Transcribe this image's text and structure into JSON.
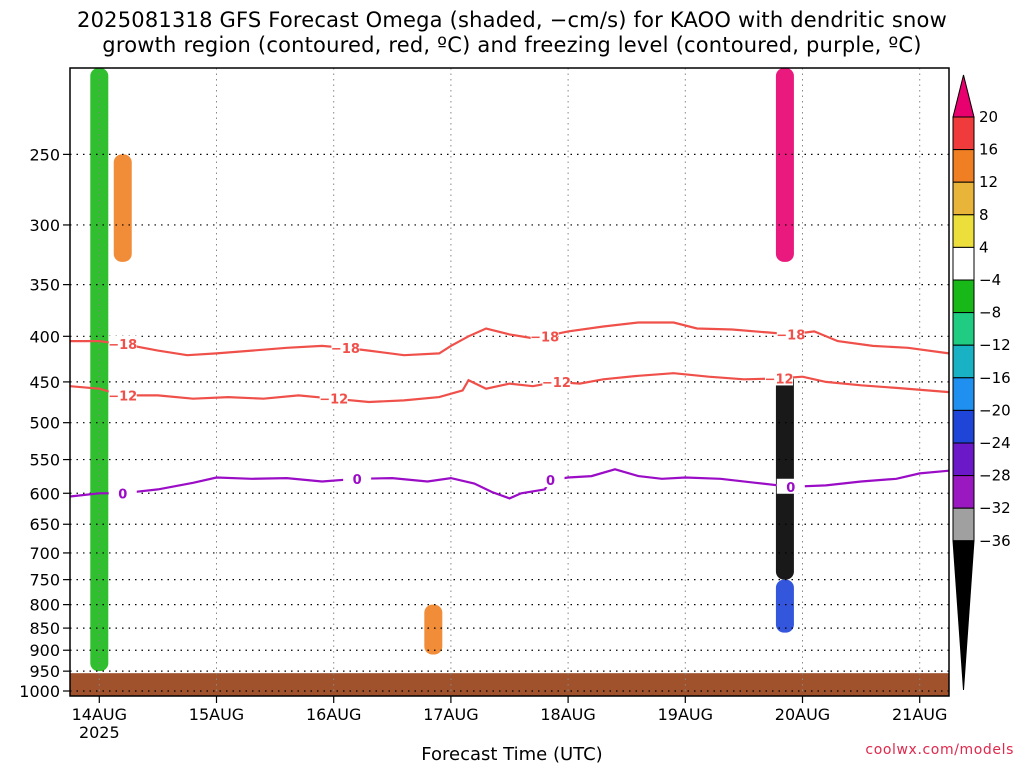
{
  "title_line1": "2025081318 GFS Forecast Omega (shaded, −cm/s) for KAOO with dendritic snow",
  "title_line2": "growth region (contoured, red, ºC) and freezing level (contoured, purple, ºC)",
  "watermark": "coolwx.com/models",
  "chart_data": {
    "type": "heatmap",
    "title": "2025081318 GFS Forecast Omega (shaded, −cm/s) for KAOO with dendritic snow growth region (contoured, red, ºC) and freezing level (contoured, purple, ºC)",
    "xlabel": "Forecast Time (UTC)",
    "ylabel": "",
    "y_scale": "log-pressure (hPa), inverted",
    "ylim": [
      1000,
      200
    ],
    "y_ticks": [
      250,
      300,
      350,
      400,
      450,
      500,
      550,
      600,
      650,
      700,
      750,
      800,
      850,
      900,
      950,
      1000
    ],
    "x_ticks": [
      "14AUG",
      "15AUG",
      "16AUG",
      "17AUG",
      "18AUG",
      "19AUG",
      "20AUG",
      "21AUG"
    ],
    "x_tick_year": "2025",
    "x_range_days": [
      13.75,
      21.25
    ],
    "grid": true,
    "colorbar": {
      "labels": [
        "20",
        "16",
        "12",
        "8",
        "4",
        "−4",
        "−8",
        "−12",
        "−16",
        "−20",
        "−24",
        "−28",
        "−32",
        "−36"
      ],
      "colors": [
        "#e8006f",
        "#ef3b3b",
        "#ef7f22",
        "#e8b43a",
        "#ecdf3c",
        "#ffffff",
        "#18b818",
        "#20cc82",
        "#18b2c4",
        "#1f8ff0",
        "#1e44d8",
        "#6a18c8",
        "#9a18c0",
        "#a0a0a0",
        "#000000"
      ]
    },
    "contours": [
      {
        "label": "-18",
        "color": "#f0504a",
        "points": [
          [
            13.75,
            405
          ],
          [
            14.0,
            405
          ],
          [
            14.2,
            408
          ],
          [
            14.5,
            415
          ],
          [
            14.75,
            420
          ],
          [
            15.0,
            418
          ],
          [
            15.3,
            415
          ],
          [
            15.6,
            412
          ],
          [
            15.9,
            410
          ],
          [
            16.1,
            412
          ],
          [
            16.3,
            415
          ],
          [
            16.6,
            420
          ],
          [
            16.9,
            418
          ],
          [
            17.0,
            410
          ],
          [
            17.15,
            400
          ],
          [
            17.3,
            392
          ],
          [
            17.5,
            398
          ],
          [
            17.7,
            402
          ],
          [
            17.8,
            400
          ],
          [
            18.0,
            395
          ],
          [
            18.3,
            390
          ],
          [
            18.6,
            386
          ],
          [
            18.9,
            386
          ],
          [
            19.1,
            392
          ],
          [
            19.4,
            393
          ],
          [
            19.7,
            396
          ],
          [
            19.9,
            398
          ],
          [
            20.1,
            395
          ],
          [
            20.3,
            405
          ],
          [
            20.6,
            410
          ],
          [
            20.9,
            412
          ],
          [
            21.25,
            418
          ]
        ]
      },
      {
        "label": "-12",
        "color": "#f0504a",
        "points": [
          [
            13.75,
            455
          ],
          [
            14.0,
            458
          ],
          [
            14.2,
            466
          ],
          [
            14.5,
            466
          ],
          [
            14.8,
            470
          ],
          [
            15.1,
            468
          ],
          [
            15.4,
            470
          ],
          [
            15.7,
            466
          ],
          [
            16.0,
            470
          ],
          [
            16.3,
            474
          ],
          [
            16.6,
            472
          ],
          [
            16.9,
            468
          ],
          [
            17.1,
            460
          ],
          [
            17.15,
            448
          ],
          [
            17.3,
            458
          ],
          [
            17.5,
            452
          ],
          [
            17.7,
            455
          ],
          [
            17.9,
            450
          ],
          [
            18.1,
            452
          ],
          [
            18.3,
            447
          ],
          [
            18.6,
            443
          ],
          [
            18.9,
            440
          ],
          [
            19.2,
            444
          ],
          [
            19.5,
            447
          ],
          [
            19.8,
            446
          ],
          [
            20.0,
            444
          ],
          [
            20.2,
            450
          ],
          [
            20.5,
            454
          ],
          [
            20.8,
            457
          ],
          [
            21.25,
            462
          ]
        ]
      },
      {
        "label": "0",
        "color": "#9a0cc6",
        "points": [
          [
            13.75,
            605
          ],
          [
            14.0,
            600
          ],
          [
            14.2,
            600
          ],
          [
            14.5,
            594
          ],
          [
            14.8,
            584
          ],
          [
            15.0,
            576
          ],
          [
            15.3,
            578
          ],
          [
            15.6,
            577
          ],
          [
            15.9,
            582
          ],
          [
            16.2,
            578
          ],
          [
            16.5,
            577
          ],
          [
            16.8,
            582
          ],
          [
            17.0,
            577
          ],
          [
            17.2,
            585
          ],
          [
            17.35,
            598
          ],
          [
            17.5,
            608
          ],
          [
            17.6,
            600
          ],
          [
            17.8,
            594
          ],
          [
            17.85,
            580
          ],
          [
            18.0,
            576
          ],
          [
            18.2,
            574
          ],
          [
            18.4,
            564
          ],
          [
            18.6,
            574
          ],
          [
            18.8,
            578
          ],
          [
            19.0,
            576
          ],
          [
            19.3,
            578
          ],
          [
            19.6,
            584
          ],
          [
            19.9,
            590
          ],
          [
            20.2,
            588
          ],
          [
            20.5,
            582
          ],
          [
            20.8,
            578
          ],
          [
            21.0,
            570
          ],
          [
            21.25,
            566
          ]
        ]
      }
    ],
    "omega_features": [
      {
        "time": 14.0,
        "p_top": 200,
        "p_bot": 950,
        "value": -8
      },
      {
        "time": 14.2,
        "p_top": 250,
        "p_bot": 330,
        "value": 12
      },
      {
        "time": 19.85,
        "p_top": 440,
        "p_bot": 750,
        "value": -36
      },
      {
        "time": 19.85,
        "p_top": 200,
        "p_bot": 330,
        "value": 20
      },
      {
        "time": 19.85,
        "p_top": 750,
        "p_bot": 860,
        "value": -24
      },
      {
        "time": 16.85,
        "p_top": 800,
        "p_bot": 910,
        "value": 12
      }
    ]
  }
}
